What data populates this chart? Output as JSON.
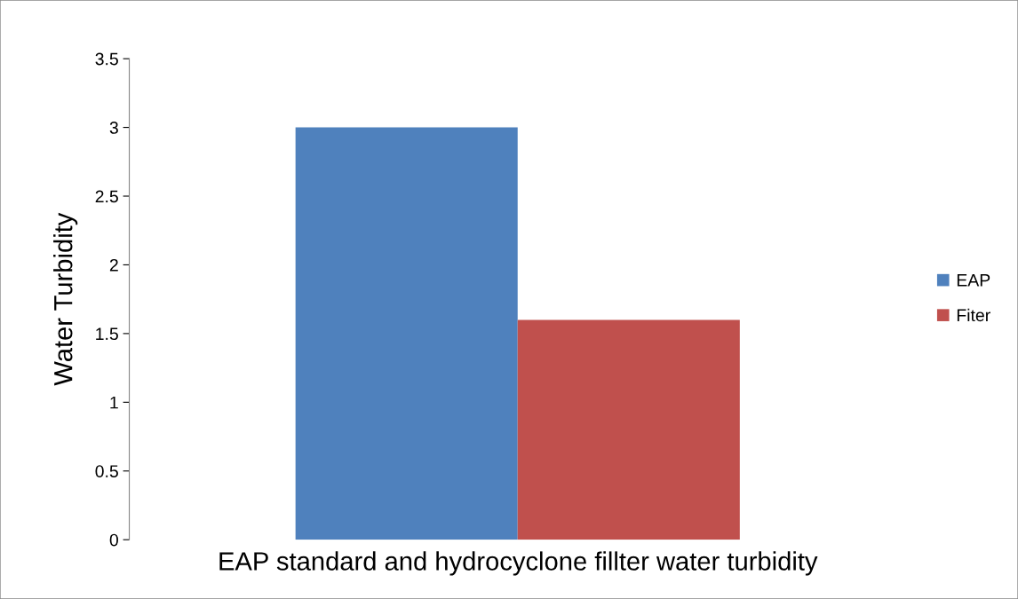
{
  "chart_data": {
    "type": "bar",
    "xlabel": "EAP standard and hydrocyclone fillter water turbidity",
    "ylabel": "Water Turbidity",
    "categories": [
      null
    ],
    "series": [
      {
        "name": "EAP",
        "color": "#4f81bd",
        "values": [
          3
        ]
      },
      {
        "name": "Fiter",
        "color": "#c0504d",
        "values": [
          1.6
        ]
      }
    ],
    "ylim": [
      0,
      3.5
    ],
    "yticks": [
      0,
      0.5,
      1,
      1.5,
      2,
      2.5,
      3,
      3.5
    ],
    "grid": false,
    "legend": "right"
  }
}
